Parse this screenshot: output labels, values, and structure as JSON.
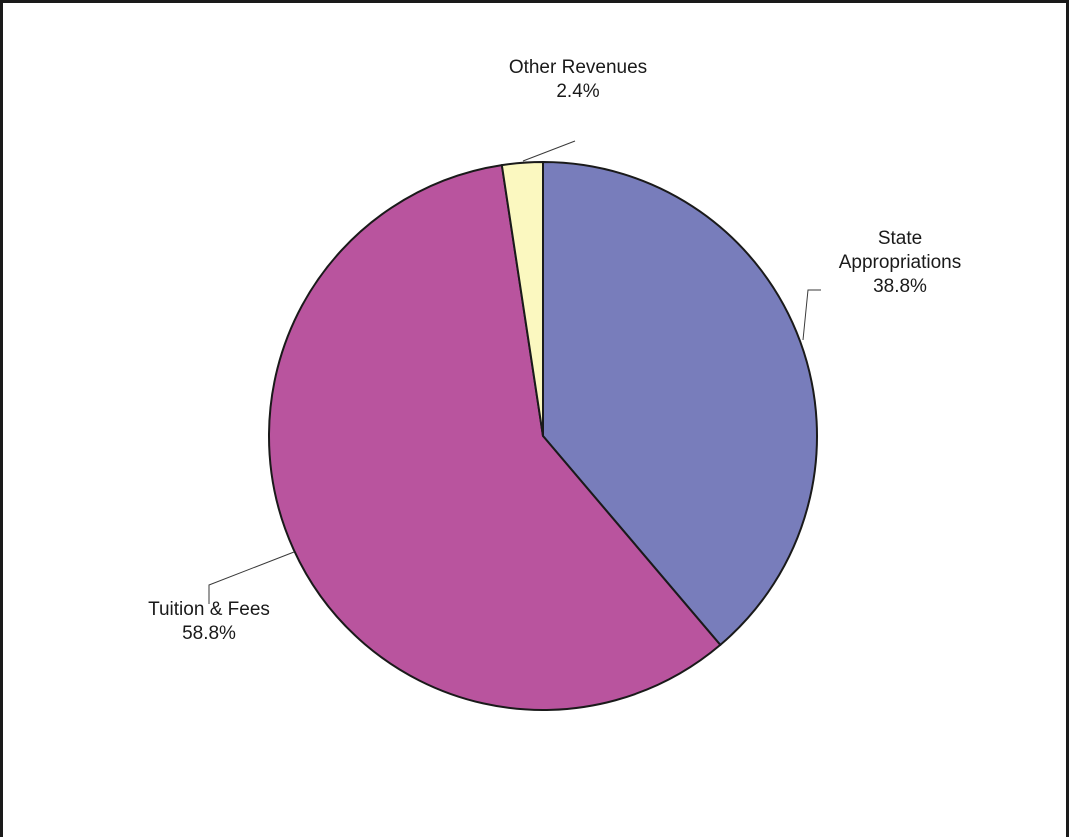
{
  "chart_data": {
    "type": "pie",
    "start_angle_deg": 0,
    "direction": "clockwise",
    "slices": [
      {
        "label_lines": [
          "State",
          "Appropriations"
        ],
        "value": 38.8,
        "value_label": "38.8%",
        "color": "#787dbb"
      },
      {
        "label_lines": [
          "Tuition & Fees"
        ],
        "value": 58.8,
        "value_label": "58.8%",
        "color": "#b9549e"
      },
      {
        "label_lines": [
          "Other Revenues"
        ],
        "value": 2.4,
        "value_label": "2.4%",
        "color": "#fbf8c0"
      }
    ]
  }
}
